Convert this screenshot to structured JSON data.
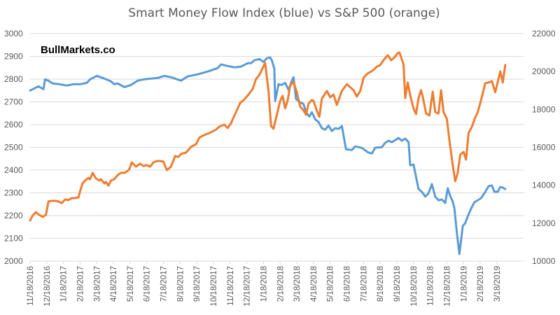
{
  "chart_data": {
    "type": "line",
    "title": "Smart Money Flow Index (blue) vs S&P 500 (orange)",
    "watermark": "BullMarkets.co",
    "xlabel": "",
    "ylabel_left": "",
    "ylabel_right": "",
    "grid": true,
    "legend": "none",
    "x_ticks": [
      "11/18/2016",
      "12/18/2016",
      "1/18/2017",
      "2/18/2017",
      "3/18/2017",
      "4/18/2017",
      "5/18/2017",
      "6/18/2017",
      "7/18/2017",
      "8/18/2017",
      "9/18/2017",
      "10/18/2017",
      "11/18/2017",
      "12/18/2017",
      "1/18/2018",
      "2/18/2018",
      "3/18/2018",
      "4/18/2018",
      "5/18/2018",
      "6/18/2018",
      "7/18/2018",
      "8/18/2018",
      "9/18/2018",
      "10/18/2018",
      "11/18/2018",
      "12/18/2018",
      "1/18/2019",
      "2/18/2019",
      "3/18/2019"
    ],
    "x_range_months": [
      0,
      29.6
    ],
    "y_left": {
      "ticks": [
        "2000",
        "2100",
        "2200",
        "2300",
        "2400",
        "2500",
        "2600",
        "2700",
        "2800",
        "2900",
        "3000"
      ],
      "lim": [
        2000,
        3000
      ]
    },
    "y_right": {
      "ticks": [
        "10000",
        "12000",
        "14000",
        "16000",
        "18000",
        "20000",
        "22000"
      ],
      "lim": [
        10000,
        22000
      ]
    },
    "series": [
      {
        "name": "Smart Money Flow Index",
        "axis": "right",
        "color": "#5b9bd5",
        "points": [
          [
            0.0,
            19000
          ],
          [
            0.5,
            19220
          ],
          [
            0.8,
            19070
          ],
          [
            0.9,
            19590
          ],
          [
            1.1,
            19510
          ],
          [
            1.35,
            19370
          ],
          [
            1.75,
            19330
          ],
          [
            2.2,
            19260
          ],
          [
            2.6,
            19330
          ],
          [
            3.0,
            19330
          ],
          [
            3.4,
            19400
          ],
          [
            3.6,
            19590
          ],
          [
            4.0,
            19770
          ],
          [
            4.45,
            19630
          ],
          [
            4.85,
            19480
          ],
          [
            5.05,
            19330
          ],
          [
            5.25,
            19370
          ],
          [
            5.65,
            19180
          ],
          [
            6.05,
            19290
          ],
          [
            6.45,
            19520
          ],
          [
            6.85,
            19590
          ],
          [
            7.25,
            19630
          ],
          [
            7.65,
            19660
          ],
          [
            8.05,
            19770
          ],
          [
            8.45,
            19700
          ],
          [
            9.05,
            19520
          ],
          [
            9.45,
            19740
          ],
          [
            10.05,
            19850
          ],
          [
            10.65,
            20000
          ],
          [
            11.25,
            20180
          ],
          [
            11.45,
            20370
          ],
          [
            11.85,
            20290
          ],
          [
            12.25,
            20220
          ],
          [
            12.65,
            20260
          ],
          [
            13.05,
            20440
          ],
          [
            13.25,
            20440
          ],
          [
            13.45,
            20590
          ],
          [
            13.75,
            20660
          ],
          [
            14.0,
            20510
          ],
          [
            14.2,
            20700
          ],
          [
            14.4,
            20740
          ],
          [
            14.5,
            20590
          ],
          [
            14.65,
            20150
          ],
          [
            14.7,
            18450
          ],
          [
            14.9,
            19330
          ],
          [
            15.1,
            19290
          ],
          [
            15.3,
            19400
          ],
          [
            15.5,
            19030
          ],
          [
            15.7,
            19510
          ],
          [
            15.8,
            19700
          ],
          [
            15.95,
            18550
          ],
          [
            16.2,
            18370
          ],
          [
            16.4,
            18290
          ],
          [
            16.55,
            17850
          ],
          [
            16.75,
            17630
          ],
          [
            16.9,
            17850
          ],
          [
            17.1,
            17480
          ],
          [
            17.3,
            17340
          ],
          [
            17.5,
            17010
          ],
          [
            17.7,
            16930
          ],
          [
            17.9,
            17150
          ],
          [
            18.1,
            16860
          ],
          [
            18.3,
            17010
          ],
          [
            18.5,
            16970
          ],
          [
            18.7,
            17120
          ],
          [
            18.95,
            15900
          ],
          [
            19.3,
            15860
          ],
          [
            19.5,
            16050
          ],
          [
            19.9,
            15970
          ],
          [
            20.3,
            15720
          ],
          [
            20.5,
            15680
          ],
          [
            20.7,
            15980
          ],
          [
            21.1,
            16010
          ],
          [
            21.3,
            16240
          ],
          [
            21.5,
            16350
          ],
          [
            21.7,
            16270
          ],
          [
            22.1,
            16490
          ],
          [
            22.3,
            16350
          ],
          [
            22.5,
            16460
          ],
          [
            22.7,
            16270
          ],
          [
            22.8,
            15050
          ],
          [
            23.0,
            15090
          ],
          [
            23.1,
            14650
          ],
          [
            23.3,
            13800
          ],
          [
            23.5,
            13650
          ],
          [
            23.7,
            13400
          ],
          [
            23.9,
            13580
          ],
          [
            24.1,
            14060
          ],
          [
            24.3,
            13400
          ],
          [
            24.5,
            13210
          ],
          [
            24.7,
            13250
          ],
          [
            24.9,
            13070
          ],
          [
            25.05,
            13840
          ],
          [
            25.2,
            13430
          ],
          [
            25.35,
            13140
          ],
          [
            25.45,
            12770
          ],
          [
            25.6,
            11480
          ],
          [
            25.75,
            10370
          ],
          [
            25.95,
            11850
          ],
          [
            26.1,
            12000
          ],
          [
            26.25,
            12360
          ],
          [
            26.45,
            12770
          ],
          [
            26.65,
            13100
          ],
          [
            26.85,
            13210
          ],
          [
            27.05,
            13320
          ],
          [
            27.3,
            13650
          ],
          [
            27.5,
            13950
          ],
          [
            27.7,
            13990
          ],
          [
            27.85,
            13660
          ],
          [
            28.05,
            13660
          ],
          [
            28.2,
            13910
          ],
          [
            28.35,
            13880
          ],
          [
            28.5,
            13800
          ]
        ]
      },
      {
        "name": "S&P 500",
        "axis": "left",
        "color": "#ed7d31",
        "points": [
          [
            0.0,
            2178
          ],
          [
            0.15,
            2200
          ],
          [
            0.35,
            2215
          ],
          [
            0.5,
            2206
          ],
          [
            0.75,
            2194
          ],
          [
            0.95,
            2203
          ],
          [
            1.1,
            2262
          ],
          [
            1.3,
            2265
          ],
          [
            1.5,
            2265
          ],
          [
            1.7,
            2262
          ],
          [
            1.9,
            2255
          ],
          [
            2.1,
            2271
          ],
          [
            2.3,
            2268
          ],
          [
            2.5,
            2277
          ],
          [
            2.7,
            2277
          ],
          [
            2.9,
            2280
          ],
          [
            3.0,
            2308
          ],
          [
            3.15,
            2342
          ],
          [
            3.3,
            2354
          ],
          [
            3.5,
            2366
          ],
          [
            3.6,
            2360
          ],
          [
            3.75,
            2388
          ],
          [
            3.95,
            2363
          ],
          [
            4.15,
            2354
          ],
          [
            4.25,
            2360
          ],
          [
            4.45,
            2342
          ],
          [
            4.55,
            2348
          ],
          [
            4.7,
            2332
          ],
          [
            4.85,
            2354
          ],
          [
            5.05,
            2360
          ],
          [
            5.25,
            2378
          ],
          [
            5.45,
            2388
          ],
          [
            5.65,
            2388
          ],
          [
            5.75,
            2391
          ],
          [
            5.95,
            2403
          ],
          [
            6.1,
            2434
          ],
          [
            6.35,
            2415
          ],
          [
            6.6,
            2428
          ],
          [
            6.8,
            2418
          ],
          [
            7.0,
            2422
          ],
          [
            7.2,
            2415
          ],
          [
            7.4,
            2434
          ],
          [
            7.6,
            2440
          ],
          [
            7.8,
            2440
          ],
          [
            8.0,
            2437
          ],
          [
            8.2,
            2400
          ],
          [
            8.45,
            2415
          ],
          [
            8.7,
            2462
          ],
          [
            8.9,
            2458
          ],
          [
            9.05,
            2471
          ],
          [
            9.35,
            2477
          ],
          [
            9.65,
            2502
          ],
          [
            9.95,
            2514
          ],
          [
            10.15,
            2542
          ],
          [
            10.35,
            2551
          ],
          [
            10.75,
            2563
          ],
          [
            11.15,
            2578
          ],
          [
            11.35,
            2591
          ],
          [
            11.65,
            2600
          ],
          [
            11.85,
            2585
          ],
          [
            12.05,
            2606
          ],
          [
            12.2,
            2631
          ],
          [
            12.4,
            2662
          ],
          [
            12.6,
            2695
          ],
          [
            12.85,
            2711
          ],
          [
            13.1,
            2732
          ],
          [
            13.35,
            2757
          ],
          [
            13.55,
            2800
          ],
          [
            13.75,
            2818
          ],
          [
            13.95,
            2849
          ],
          [
            14.1,
            2871
          ],
          [
            14.2,
            2809
          ],
          [
            14.3,
            2748
          ],
          [
            14.45,
            2594
          ],
          [
            14.6,
            2582
          ],
          [
            14.8,
            2643
          ],
          [
            15.0,
            2705
          ],
          [
            15.15,
            2726
          ],
          [
            15.3,
            2671
          ],
          [
            15.45,
            2708
          ],
          [
            15.6,
            2772
          ],
          [
            15.8,
            2788
          ],
          [
            16.0,
            2742
          ],
          [
            16.2,
            2680
          ],
          [
            16.4,
            2662
          ],
          [
            16.55,
            2643
          ],
          [
            16.7,
            2692
          ],
          [
            16.9,
            2708
          ],
          [
            17.0,
            2705
          ],
          [
            17.2,
            2660
          ],
          [
            17.35,
            2634
          ],
          [
            17.5,
            2714
          ],
          [
            17.8,
            2748
          ],
          [
            18.0,
            2720
          ],
          [
            18.2,
            2732
          ],
          [
            18.4,
            2686
          ],
          [
            18.7,
            2748
          ],
          [
            19.0,
            2778
          ],
          [
            19.4,
            2751
          ],
          [
            19.6,
            2723
          ],
          [
            19.8,
            2748
          ],
          [
            20.0,
            2806
          ],
          [
            20.2,
            2822
          ],
          [
            20.4,
            2831
          ],
          [
            20.6,
            2840
          ],
          [
            20.8,
            2855
          ],
          [
            21.0,
            2862
          ],
          [
            21.2,
            2883
          ],
          [
            21.45,
            2905
          ],
          [
            21.65,
            2883
          ],
          [
            21.85,
            2895
          ],
          [
            22.05,
            2914
          ],
          [
            22.15,
            2917
          ],
          [
            22.3,
            2886
          ],
          [
            22.4,
            2865
          ],
          [
            22.5,
            2717
          ],
          [
            22.65,
            2785
          ],
          [
            22.8,
            2729
          ],
          [
            23.0,
            2671
          ],
          [
            23.15,
            2646
          ],
          [
            23.3,
            2717
          ],
          [
            23.45,
            2751
          ],
          [
            23.55,
            2723
          ],
          [
            23.75,
            2649
          ],
          [
            23.95,
            2640
          ],
          [
            24.15,
            2745
          ],
          [
            24.3,
            2655
          ],
          [
            24.5,
            2649
          ],
          [
            24.65,
            2751
          ],
          [
            24.8,
            2655
          ],
          [
            25.0,
            2625
          ],
          [
            25.15,
            2532
          ],
          [
            25.35,
            2422
          ],
          [
            25.5,
            2351
          ],
          [
            25.65,
            2388
          ],
          [
            25.8,
            2468
          ],
          [
            26.0,
            2480
          ],
          [
            26.15,
            2446
          ],
          [
            26.3,
            2563
          ],
          [
            26.5,
            2591
          ],
          [
            26.7,
            2631
          ],
          [
            26.85,
            2655
          ],
          [
            27.05,
            2708
          ],
          [
            27.3,
            2782
          ],
          [
            27.5,
            2785
          ],
          [
            27.7,
            2791
          ],
          [
            27.9,
            2742
          ],
          [
            28.1,
            2803
          ],
          [
            28.2,
            2834
          ],
          [
            28.35,
            2785
          ],
          [
            28.5,
            2862
          ]
        ]
      }
    ]
  }
}
